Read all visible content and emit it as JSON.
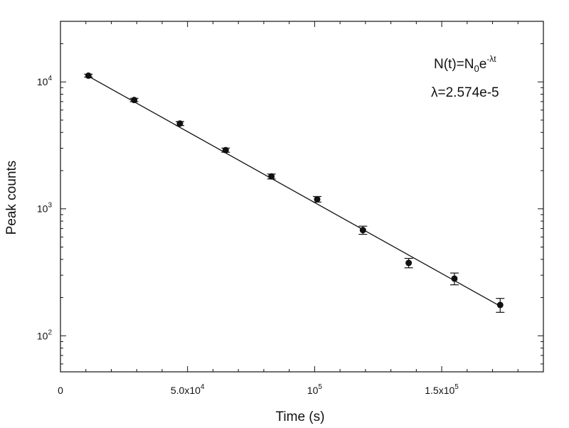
{
  "chart_data": {
    "type": "scatter",
    "xlabel": "Time (s)",
    "ylabel": "Peak counts",
    "xlim": [
      0,
      190000
    ],
    "ylim": [
      52,
      30000
    ],
    "y_scale": "log",
    "grid": false,
    "legend": "none",
    "x_ticks": [
      {
        "value": 0,
        "label": "0"
      },
      {
        "value": 50000,
        "mant": "5.0x10",
        "exp": "4"
      },
      {
        "value": 100000,
        "mant": "10",
        "exp": "5"
      },
      {
        "value": 150000,
        "mant": "1.5x10",
        "exp": "5"
      }
    ],
    "y_ticks": [
      {
        "value": 100,
        "mant": "10",
        "exp": "2"
      },
      {
        "value": 1000,
        "mant": "10",
        "exp": "3"
      },
      {
        "value": 10000,
        "mant": "10",
        "exp": "4"
      }
    ],
    "series": [
      {
        "x": [
          11000,
          29000,
          47000,
          65000,
          83000,
          101000,
          119000,
          137000,
          155000,
          173000
        ],
        "y": [
          11200,
          7200,
          4700,
          2900,
          1800,
          1190,
          680,
          375,
          282,
          175
        ],
        "yerr": [
          300,
          220,
          170,
          110,
          80,
          60,
          50,
          32,
          30,
          22
        ]
      }
    ],
    "fit": {
      "N0": 14700,
      "lambda": 2.574e-05,
      "x_range": [
        11000,
        173000
      ]
    },
    "annotations": {
      "formula": {
        "lhs": "N(t)=N",
        "sub": "0",
        "base": "e",
        "sup": "-λt"
      },
      "lambda_text": "λ=2.574e-5"
    },
    "colors": {
      "axis": "#111111",
      "marker": "#111111",
      "line": "#111111"
    }
  }
}
